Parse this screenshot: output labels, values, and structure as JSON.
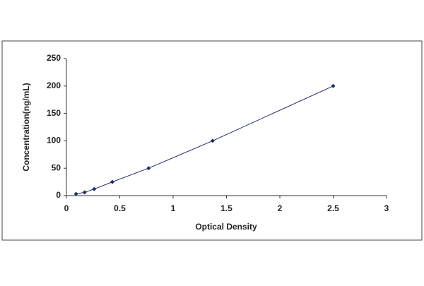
{
  "chart_data": {
    "type": "line",
    "x_label": "Optical Density",
    "y_label": "Concentration(ng/mL)",
    "x": [
      0.09,
      0.17,
      0.26,
      0.43,
      0.77,
      1.37,
      2.5
    ],
    "series": [
      {
        "color": "#1f2a6b",
        "values": [
          3,
          6,
          12,
          25,
          50,
          100,
          200
        ]
      }
    ],
    "xlim": [
      0,
      3
    ],
    "xticks": [
      0,
      0.5,
      1,
      1.5,
      2,
      2.5,
      3
    ],
    "ylim": [
      0,
      250
    ],
    "yticks": [
      0,
      50,
      100,
      150,
      200,
      250
    ],
    "grid": false
  }
}
